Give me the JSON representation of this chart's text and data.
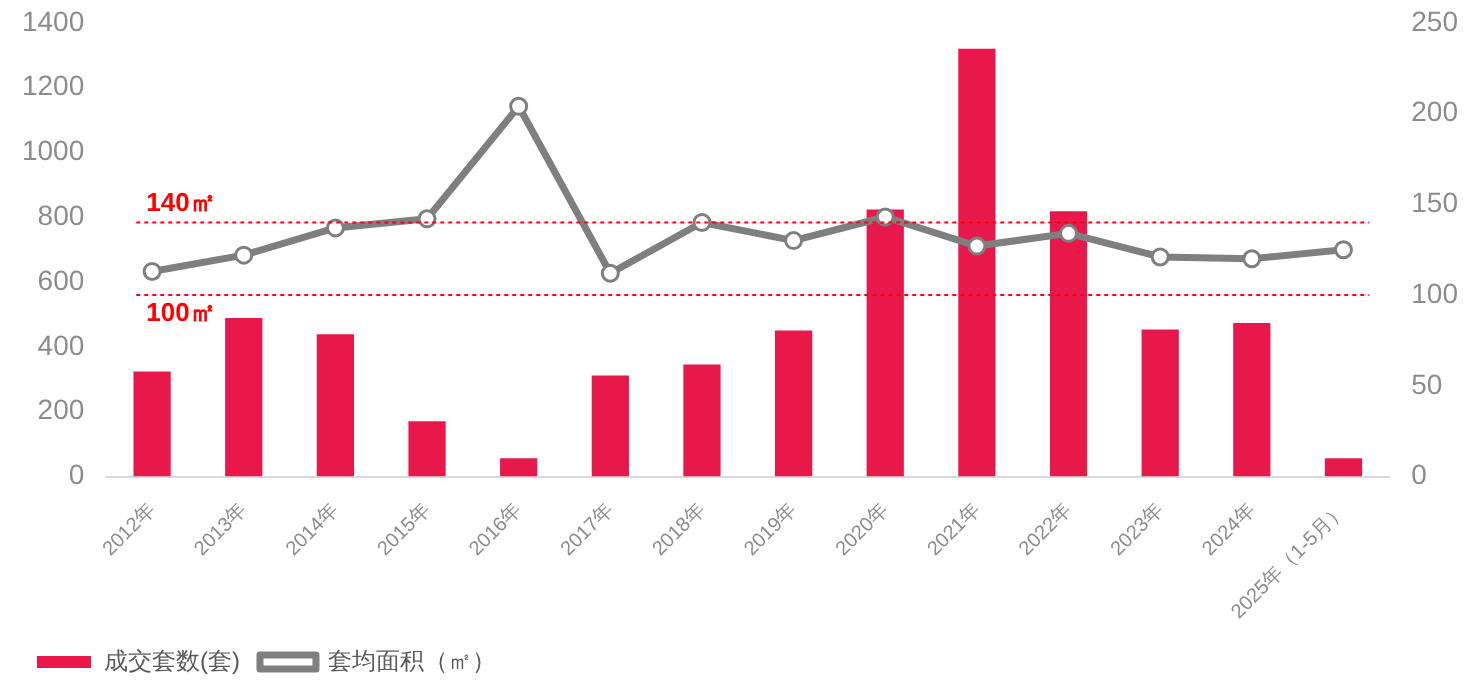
{
  "chart_data": {
    "type": "bar",
    "categories": [
      "2012年",
      "2013年",
      "2014年",
      "2015年",
      "2016年",
      "2017年",
      "2018年",
      "2019年",
      "2020年",
      "2021年",
      "2022年",
      "2023年",
      "2024年",
      "2025年（1-5月）"
    ],
    "series": [
      {
        "name": "成交套数(套)",
        "color": "#e8194a",
        "values": [
          330,
          495,
          445,
          177,
          63,
          318,
          352,
          457,
          830,
          1326,
          825,
          460,
          480,
          63
        ]
      },
      {
        "name": "套均面积（㎡）",
        "type": "line",
        "axis": "y2",
        "color": "#7f7f7f",
        "values": [
          113,
          122,
          137,
          142,
          204,
          112,
          140,
          130,
          143,
          127,
          134,
          121,
          120,
          125
        ]
      }
    ],
    "ylim": [
      0,
      1400
    ],
    "yticks": [
      0,
      200,
      400,
      600,
      800,
      1000,
      1200,
      1400
    ],
    "y2lim": [
      0,
      250
    ],
    "y2ticks": [
      0,
      50,
      100,
      150,
      200,
      250
    ],
    "ref_lines": [
      {
        "axis": "y2",
        "value": 140,
        "label": "140㎡",
        "color": "#ff0000",
        "line_style": "dotted"
      },
      {
        "axis": "y2",
        "value": 100,
        "label": "100㎡",
        "color": "#ff0000",
        "line_style": "dotted"
      }
    ],
    "grid": false,
    "legend": "bottom left",
    "marker": "circle",
    "line_style": "solid"
  }
}
